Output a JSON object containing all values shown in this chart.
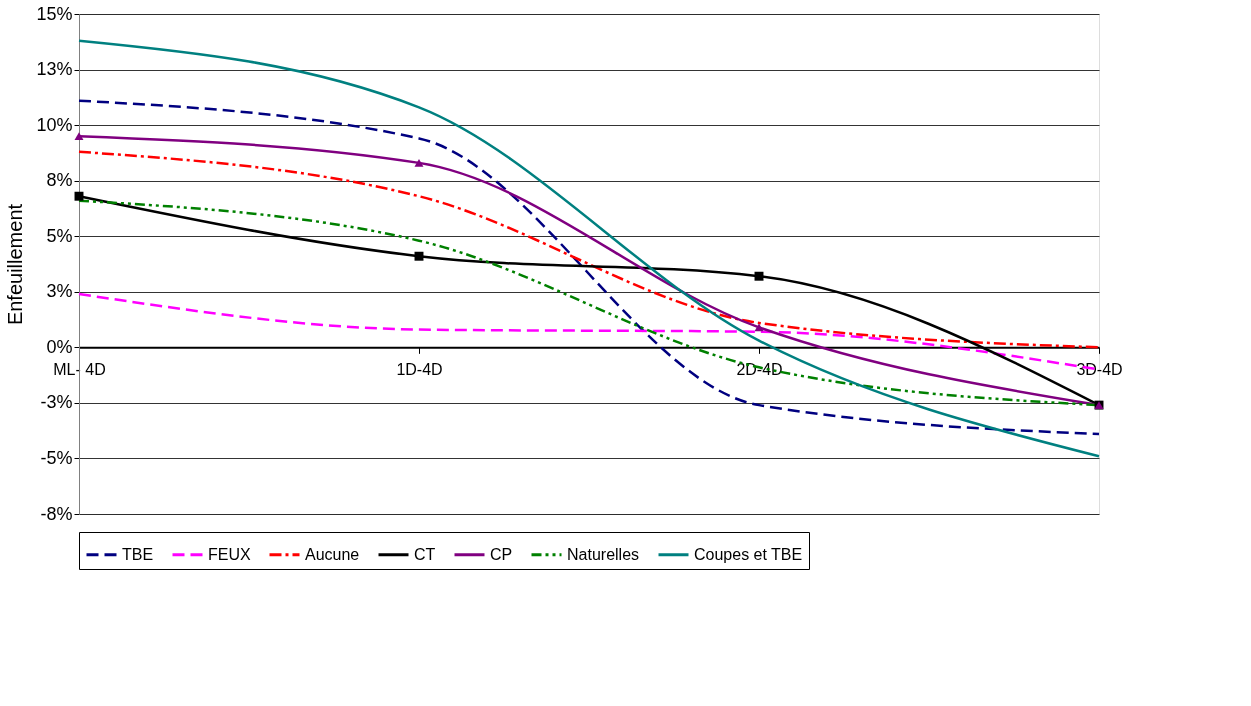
{
  "chart_data": {
    "type": "line",
    "ylabel": "Enfeuillement",
    "categories": [
      "ML- 4D",
      "1D-4D",
      "2D-4D",
      "3D-4D"
    ],
    "series": [
      {
        "name": "TBE",
        "color": "#000080",
        "line_style": "dashed",
        "marker": "none",
        "values": [
          11.1,
          9.4,
          -2.6,
          -3.9
        ]
      },
      {
        "name": "FEUX",
        "color": "#ff00ff",
        "line_style": "dashed",
        "marker": "none",
        "values": [
          2.4,
          0.8,
          0.7,
          -1.0
        ]
      },
      {
        "name": "Aucune",
        "color": "#ff0000",
        "line_style": "dashdot",
        "marker": "none",
        "values": [
          8.8,
          6.8,
          1.1,
          0.0
        ]
      },
      {
        "name": "CT",
        "color": "#000000",
        "line_style": "solid",
        "marker": "square",
        "values": [
          6.8,
          4.1,
          3.2,
          -2.6
        ]
      },
      {
        "name": "CP",
        "color": "#800080",
        "line_style": "solid",
        "marker": "triangle",
        "values": [
          9.5,
          8.3,
          0.9,
          -2.6
        ]
      },
      {
        "name": "Naturelles",
        "color": "#008000",
        "line_style": "dashdotdot",
        "marker": "none",
        "values": [
          6.6,
          4.8,
          -0.9,
          -2.6
        ]
      },
      {
        "name": "Coupes et TBE",
        "color": "#008080",
        "line_style": "solid",
        "marker": "none",
        "values": [
          13.8,
          10.8,
          0.3,
          -4.9
        ]
      }
    ],
    "ylim": [
      -7.5,
      15
    ],
    "yticks": [
      {
        "value": -7.5,
        "label": "-8%"
      },
      {
        "value": -5,
        "label": "-5%"
      },
      {
        "value": -2.5,
        "label": "-3%"
      },
      {
        "value": 0,
        "label": "0%"
      },
      {
        "value": 2.5,
        "label": "3%"
      },
      {
        "value": 5,
        "label": "5%"
      },
      {
        "value": 7.5,
        "label": "8%"
      },
      {
        "value": 10,
        "label": "10%"
      },
      {
        "value": 12.5,
        "label": "13%"
      },
      {
        "value": 15,
        "label": "15%"
      }
    ],
    "grid": "y",
    "legend": "bottom"
  }
}
